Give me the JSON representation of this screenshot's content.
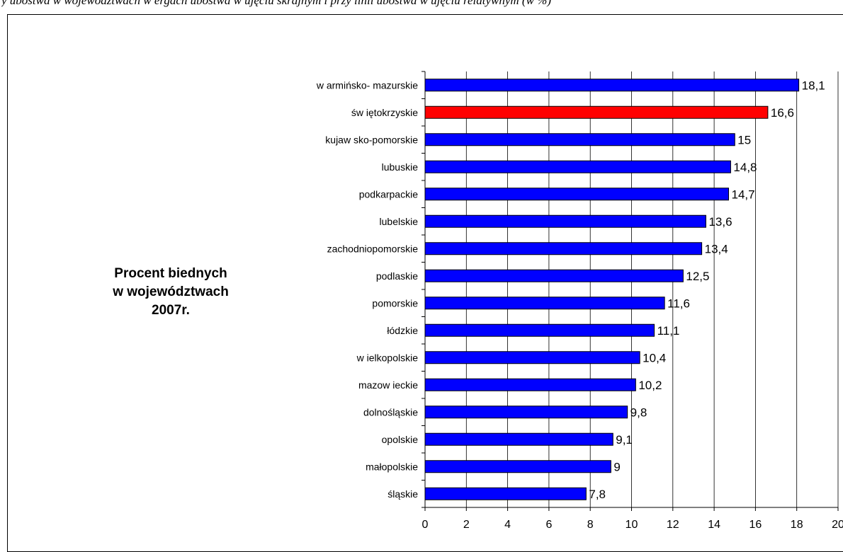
{
  "caption": "y ubóstwa w województwach w ergach ubóstwa w ujęciu skrajnym i przy linii ubóstwa w ujęciu relatywnym (w %)",
  "chart_data": {
    "type": "bar",
    "orientation": "horizontal",
    "title_lines": [
      "Procent biednych",
      "w województwach",
      "2007r."
    ],
    "categories": [
      "w armińsko- mazurskie",
      "św iętokrzyskie",
      "kujaw sko-pomorskie",
      "lubuskie",
      "podkarpackie",
      "lubelskie",
      "zachodniopomorskie",
      "podlaskie",
      "pomorskie",
      "łódzkie",
      "w ielkopolskie",
      "mazow ieckie",
      "dolnośląskie",
      "opolskie",
      "małopolskie",
      "śląskie"
    ],
    "values": [
      18.1,
      16.6,
      15,
      14.8,
      14.7,
      13.6,
      13.4,
      12.5,
      11.6,
      11.1,
      10.4,
      10.2,
      9.8,
      9.1,
      9,
      7.8
    ],
    "value_labels": [
      "18,1",
      "16,6",
      "15",
      "14,8",
      "14,7",
      "13,6",
      "13,4",
      "12,5",
      "11,6",
      "11,1",
      "10,4",
      "10,2",
      "9,8",
      "9,1",
      "9",
      "7,8"
    ],
    "highlight_index": 1,
    "xlim": [
      0,
      20
    ],
    "xticks": [
      0,
      2,
      4,
      6,
      8,
      10,
      12,
      14,
      16,
      18,
      20
    ],
    "xtick_labels": [
      "0",
      "2",
      "4",
      "6",
      "8",
      "10",
      "12",
      "14",
      "16",
      "18",
      "20"
    ],
    "grid": "vertical",
    "colors": {
      "bar": "#0000ff",
      "highlight": "#ff0000",
      "grid": "#000000"
    }
  }
}
